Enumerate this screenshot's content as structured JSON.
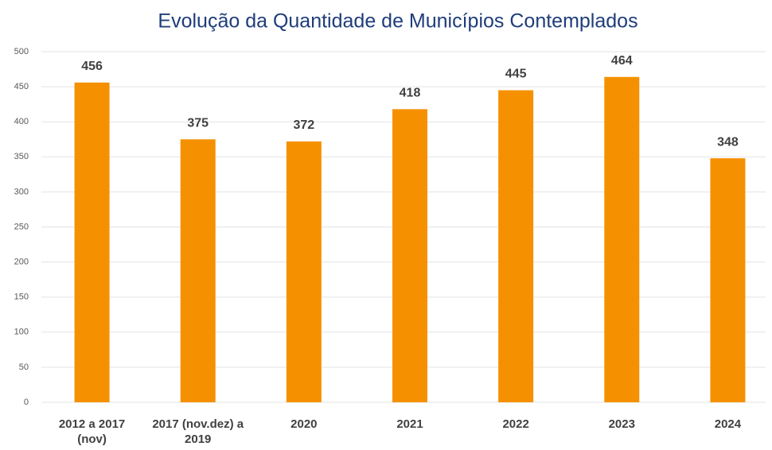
{
  "chart_data": {
    "type": "bar",
    "title": "Evolução da Quantidade de Municípios Contemplados",
    "categories": [
      "2012 a 2017 (nov)",
      "2017 (nov.dez) a 2019",
      "2020",
      "2021",
      "2022",
      "2023",
      "2024"
    ],
    "values": [
      456,
      375,
      372,
      418,
      445,
      464,
      348
    ],
    "color": "#f59100",
    "ylim": [
      0,
      500
    ],
    "yticks": [
      0,
      50,
      100,
      150,
      200,
      250,
      300,
      350,
      400,
      450,
      500
    ],
    "grid": true
  }
}
